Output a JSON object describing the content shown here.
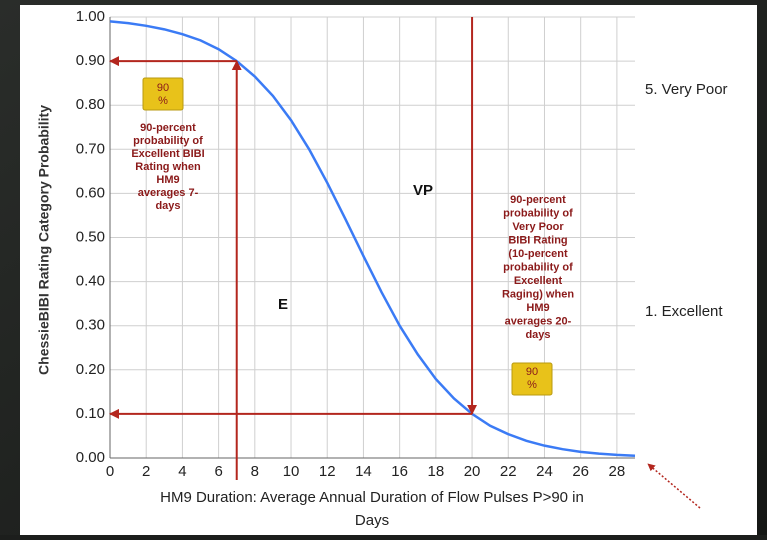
{
  "chart_data": {
    "type": "line",
    "ylabel": "ChessieBIBI Rating Category Probability",
    "xlabel": [
      "HM9 Duration: Average Annual Duration of Flow Pulses P>90 in",
      "Days"
    ],
    "x": [
      0,
      1,
      2,
      3,
      4,
      5,
      6,
      7,
      8,
      9,
      10,
      11,
      12,
      13,
      14,
      15,
      16,
      17,
      18,
      19,
      20,
      21,
      22,
      23,
      24,
      25,
      26,
      27,
      28,
      29
    ],
    "series": [
      {
        "color": "#3b7bf5",
        "values": [
          0.99,
          0.986,
          0.98,
          0.972,
          0.961,
          0.947,
          0.927,
          0.9,
          0.865,
          0.821,
          0.766,
          0.7,
          0.624,
          0.542,
          0.458,
          0.376,
          0.3,
          0.235,
          0.179,
          0.135,
          0.1,
          0.073,
          0.054,
          0.039,
          0.028,
          0.02,
          0.014,
          0.01,
          0.007,
          0.005
        ]
      }
    ],
    "xlim": [
      0,
      29
    ],
    "ylim": [
      0,
      1
    ],
    "xticks": [
      0,
      2,
      4,
      6,
      8,
      10,
      12,
      14,
      16,
      18,
      20,
      22,
      24,
      26,
      28
    ],
    "yticks": [
      {
        "value": 0,
        "label": "0.00"
      },
      {
        "value": 0.1,
        "label": "0.10"
      },
      {
        "value": 0.2,
        "label": "0.20"
      },
      {
        "value": 0.3,
        "label": "0.30"
      },
      {
        "value": 0.4,
        "label": "0.40"
      },
      {
        "value": 0.5,
        "label": "0.50"
      },
      {
        "value": 0.6,
        "label": "0.60"
      },
      {
        "value": 0.7,
        "label": "0.70"
      },
      {
        "value": 0.8,
        "label": "0.80"
      },
      {
        "value": 0.9,
        "label": "0.90"
      },
      {
        "value": 1,
        "label": "1.00"
      }
    ],
    "grid": true,
    "reference_lines": [
      {
        "x": 7,
        "y": 0.9
      },
      {
        "x": 20,
        "y": 0.1
      }
    ],
    "reference_color": "#b3261e",
    "annotations": [
      {
        "lines": [
          "90",
          "%"
        ]
      },
      {
        "lines": [
          "90-percent",
          "probability of",
          "Excellent  BIBI",
          "Rating when",
          "HM9",
          "averages 7-",
          "days"
        ]
      },
      {
        "lines": [
          "90-percent",
          "probability of",
          "Very Poor",
          "BIBI Rating",
          "(10-percent",
          "probability of",
          "Excellent",
          "Raging) when",
          "HM9",
          "averages 20-",
          "days"
        ]
      },
      {
        "lines": [
          "90",
          "%"
        ]
      },
      {
        "lines": [
          "E"
        ]
      },
      {
        "lines": [
          "VP"
        ]
      },
      {
        "lines": [
          "5. Very Poor"
        ]
      },
      {
        "lines": [
          "1. Excellent"
        ]
      }
    ]
  }
}
